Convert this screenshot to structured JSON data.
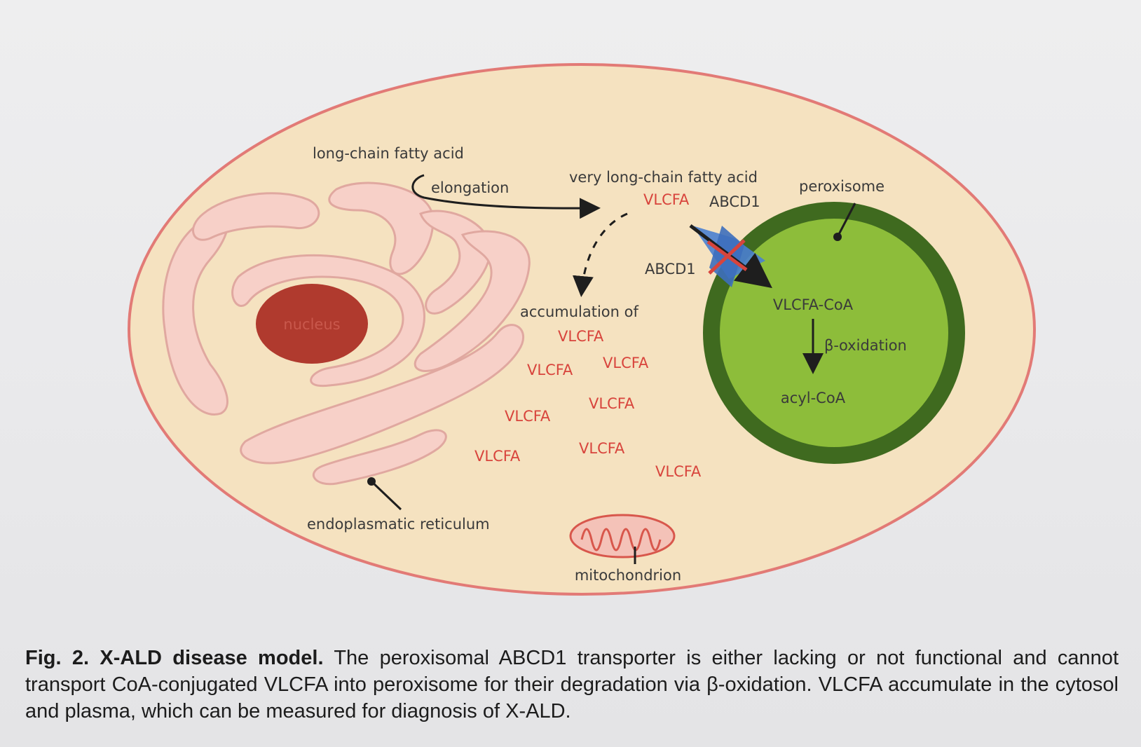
{
  "labels": {
    "long_chain": "long-chain fatty acid",
    "elongation": "elongation",
    "very_long_chain": "very long-chain fatty acid",
    "vlcfa_top": "VLCFA",
    "abcd1_top": "ABCD1",
    "abcd1_left": "ABCD1",
    "peroxisome": "peroxisome",
    "nucleus": "nucleus",
    "accumulation": "accumulation of",
    "vlcfa_coa": "VLCFA-CoA",
    "beta_oxidation": "β-oxidation",
    "acyl_coa": "acyl-CoA",
    "er": "endoplasmatic reticulum",
    "mitochondrion": "mitochondrion"
  },
  "vlcfa_scatter": [
    "VLCFA",
    "VLCFA",
    "VLCFA",
    "VLCFA",
    "VLCFA",
    "VLCFA",
    "VLCFA",
    "VLCFA"
  ],
  "caption": {
    "title": "Fig. 2. X-ALD disease model.",
    "body": " The peroxisomal ABCD1 transporter is either lacking or not functional and cannot transport CoA-conjugated VLCFA into peroxisome for their degradation via β-oxidation. VLCFA accumulate in the cytosol and plasma, which can be measured for diagnosis of X-ALD."
  },
  "colors": {
    "cell_fill": "#f5e2c0",
    "cell_border": "#e27a76",
    "er_fill": "#f7d0c8",
    "nucleus": "#b03a2e",
    "peroxisome_ring": "#3f6a1f",
    "peroxisome_fill": "#8dbd3a",
    "transporter": "#4a7fd0",
    "accent_red": "#d8443c"
  }
}
